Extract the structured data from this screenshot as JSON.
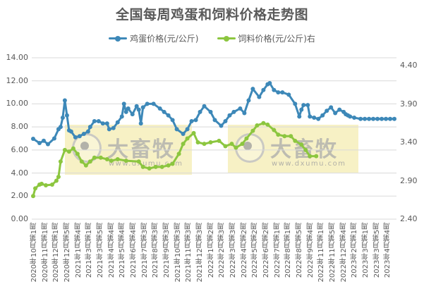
{
  "chart_data": {
    "type": "line",
    "title": "全国每周鸡蛋和饲料价格走势图",
    "legend": [
      "鸡蛋价格(元/公斤)",
      "饲料价格(元/公斤)右"
    ],
    "legend_position": "top",
    "grid": true,
    "categories": [
      "2020年10月第1周",
      "2020年11月第1周",
      "2020年12月第1周",
      "2020年12月第5周",
      "2021年1月第4周",
      "2021年3月第1周",
      "2021年3月第5周",
      "2021年4月第4周",
      "2021年5月第4周",
      "2021年6月第4周",
      "2021年7月第3周",
      "2021年8月第3周",
      "2021年9月第3周",
      "2021年10月第3周",
      "2021年11月第3周",
      "2021年12月第3周",
      "2022年1月第2周",
      "2022年2月第3周",
      "2022年3月第3周",
      "2022年4月第2周",
      "2022年5月第2周",
      "2022年6月第2周",
      "2022年7月第1周",
      "2022年8月第1周",
      "2022年8月第5周",
      "2022年9月第4周",
      "2022年11月第1周",
      "2022年11月第5周",
      "2022年12月第4周",
      "2023年2月第1周",
      "2023年3月第1周",
      "2023年3月第5周",
      "2023年4月第4周"
    ],
    "y_left": {
      "label": "",
      "ticks": [
        "0.00",
        "2.00",
        "4.00",
        "6.00",
        "8.00",
        "10.00",
        "12.00",
        "14.00"
      ],
      "ylim": [
        0,
        14
      ]
    },
    "y_right": {
      "label": "",
      "ticks": [
        "2.40",
        "2.90",
        "3.40",
        "3.90",
        "4.40"
      ],
      "ylim": [
        2.4,
        4.4
      ]
    },
    "x_range_weeks": [
      0,
      135
    ],
    "series": [
      {
        "name": "鸡蛋价格(元/公斤)",
        "axis": "left",
        "color": "#3d88b8",
        "week": [
          0,
          3,
          5,
          7,
          10,
          12,
          13,
          14,
          15,
          16,
          17,
          18,
          20,
          22,
          24,
          26,
          27,
          29,
          31,
          33,
          35,
          36,
          38,
          40,
          42,
          43,
          44,
          45,
          47,
          49,
          50,
          51,
          52,
          54,
          57,
          60,
          62,
          64,
          66,
          68,
          71,
          73,
          75,
          77,
          79,
          81,
          84,
          86,
          89,
          91,
          93,
          95,
          98,
          100,
          102,
          104,
          107,
          109,
          111,
          112,
          114,
          116,
          118,
          121,
          124,
          126,
          127,
          128,
          130,
          131,
          133,
          135,
          137,
          139,
          141,
          143,
          145,
          147,
          148,
          149,
          150,
          152,
          155,
          157,
          159,
          161,
          163,
          165,
          167,
          169,
          171
        ],
        "values": [
          6.97,
          6.6,
          6.8,
          6.5,
          7.0,
          7.8,
          8.0,
          8.8,
          10.3,
          9.0,
          7.7,
          7.6,
          7.1,
          7.2,
          7.4,
          7.6,
          8.0,
          8.5,
          8.5,
          8.3,
          8.3,
          7.8,
          7.9,
          8.4,
          8.9,
          10.0,
          9.3,
          9.6,
          9.1,
          9.8,
          9.5,
          8.3,
          9.7,
          10.0,
          10.0,
          9.6,
          9.3,
          9.0,
          8.6,
          7.8,
          7.4,
          7.8,
          8.5,
          8.6,
          9.3,
          9.8,
          9.3,
          8.6,
          8.1,
          8.5,
          9.0,
          9.3,
          9.6,
          9.2,
          10.3,
          11.3,
          10.6,
          11.2,
          11.7,
          11.8,
          11.2,
          11.0,
          11.0,
          10.8,
          10.0,
          8.9,
          9.5,
          9.9,
          9.9,
          8.9,
          8.8,
          8.7,
          9.0,
          9.4,
          9.7,
          9.2,
          9.5,
          9.3,
          9.1,
          9.0,
          8.9,
          8.8,
          8.7,
          8.7,
          8.7,
          8.7,
          8.7,
          8.7,
          8.7,
          8.7,
          8.7
        ]
      },
      {
        "name": "饲料价格(元/公斤)右",
        "axis": "right",
        "color": "#8cc63f",
        "week": [
          0,
          1,
          3,
          4,
          6,
          9,
          11,
          12,
          13,
          15,
          17,
          19,
          21,
          23,
          25,
          27,
          29,
          32,
          35,
          37,
          40,
          44,
          50,
          52,
          55,
          58,
          61,
          64,
          66,
          69,
          71,
          73,
          76,
          78,
          81,
          84,
          88,
          91,
          94,
          96,
          99,
          101,
          104,
          106,
          109,
          111,
          114,
          116,
          119,
          122,
          124,
          127,
          129,
          131,
          134
        ],
        "values": [
          2.7,
          2.8,
          2.85,
          2.86,
          2.84,
          2.85,
          2.9,
          2.95,
          3.15,
          3.3,
          3.28,
          3.32,
          3.25,
          3.15,
          3.1,
          3.15,
          3.2,
          3.2,
          3.18,
          3.16,
          3.18,
          3.16,
          3.15,
          3.08,
          3.06,
          3.08,
          3.08,
          3.1,
          3.12,
          3.25,
          3.38,
          3.45,
          3.52,
          3.4,
          3.38,
          3.4,
          3.42,
          3.35,
          3.38,
          3.33,
          3.38,
          3.45,
          3.55,
          3.62,
          3.65,
          3.63,
          3.56,
          3.5,
          3.48,
          3.48,
          3.42,
          3.37,
          3.3,
          3.22,
          3.22
        ]
      }
    ],
    "watermark": {
      "text": "大畜牧",
      "url": "www.dxumu.com"
    }
  },
  "labels": {
    "title": "全国每周鸡蛋和饲料价格走势图",
    "legend_egg": "鸡蛋价格(元/公斤)",
    "legend_feed": "饲料价格(元/公斤)右",
    "watermark_text": "大畜牧",
    "watermark_url": "www.dxumu.com"
  },
  "colors": {
    "egg": "#3d88b8",
    "feed": "#8cc63f",
    "grid": "#d9d9d9",
    "text": "#595959"
  }
}
